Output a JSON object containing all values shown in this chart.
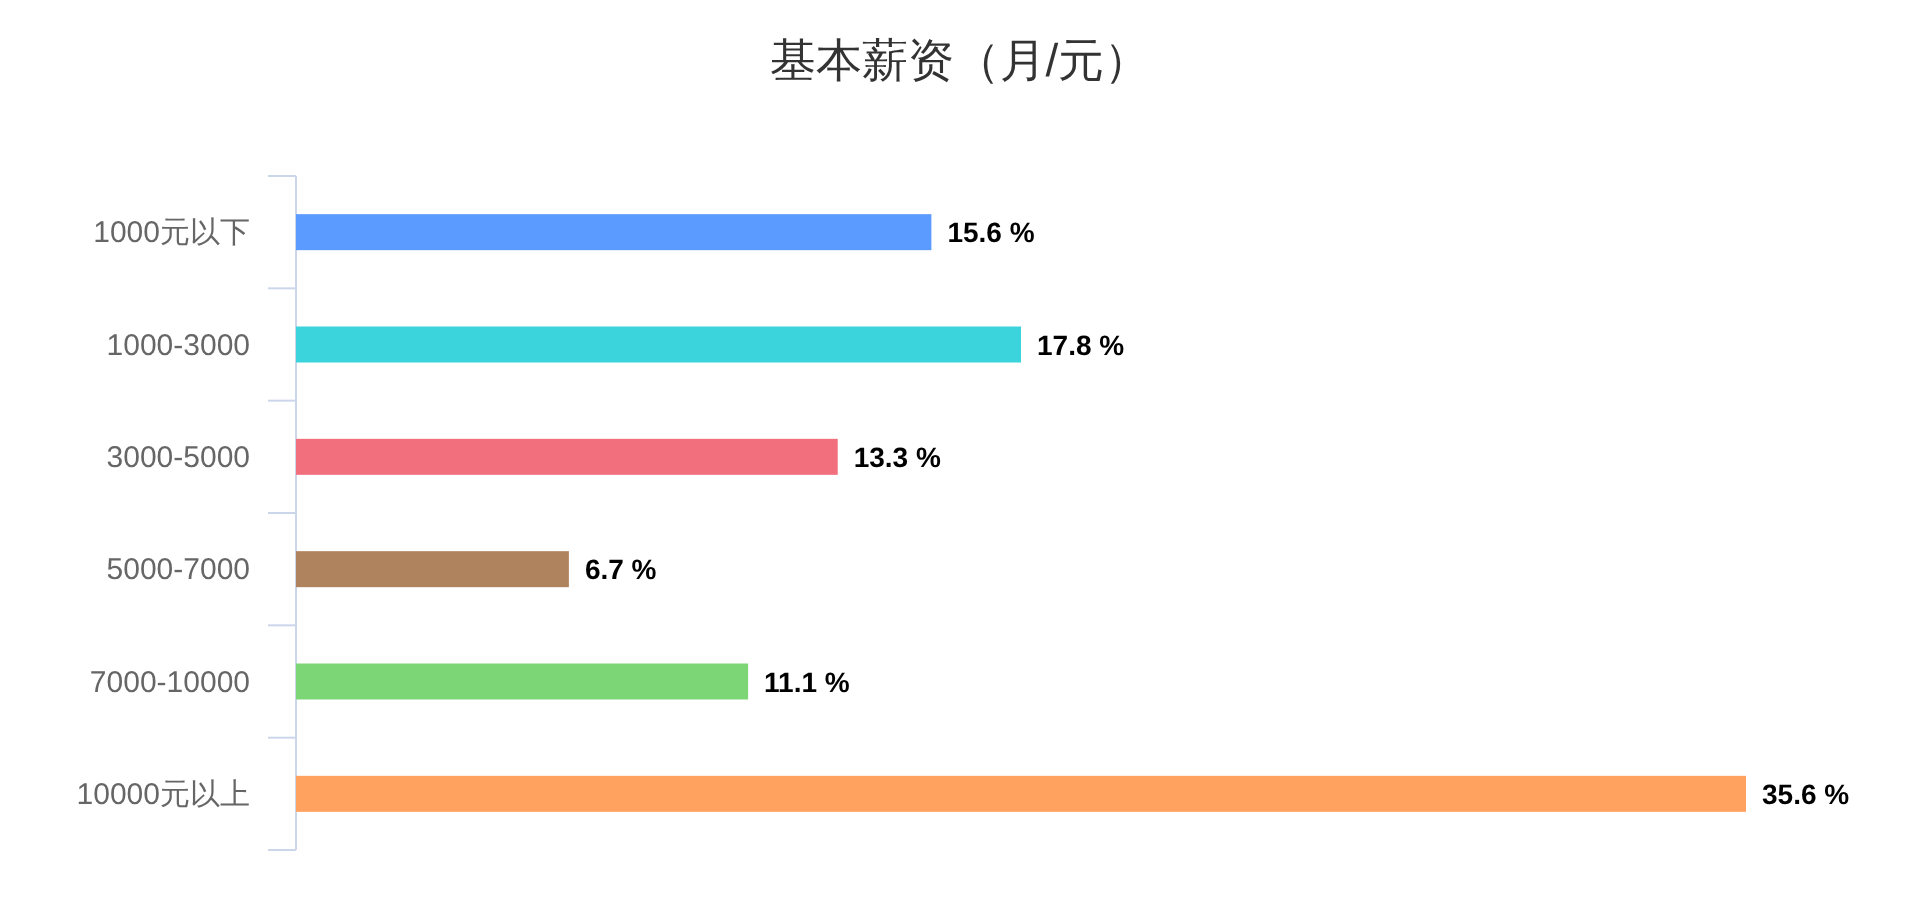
{
  "chart_data": {
    "type": "bar",
    "orientation": "horizontal",
    "title": "基本薪资（月/元）",
    "categories": [
      "1000元以下",
      "1000-3000",
      "3000-5000",
      "5000-7000",
      "7000-10000",
      "10000元以上"
    ],
    "values": [
      15.6,
      17.8,
      13.3,
      6.7,
      11.1,
      35.6
    ],
    "value_labels": [
      "15.6 %",
      "17.8 %",
      "13.3 %",
      "6.7 %",
      "11.1 %",
      "35.6 %"
    ],
    "colors": [
      "#5b9bff",
      "#3bd4dc",
      "#f2707e",
      "#b0835f",
      "#7dd676",
      "#ffa15f"
    ]
  }
}
